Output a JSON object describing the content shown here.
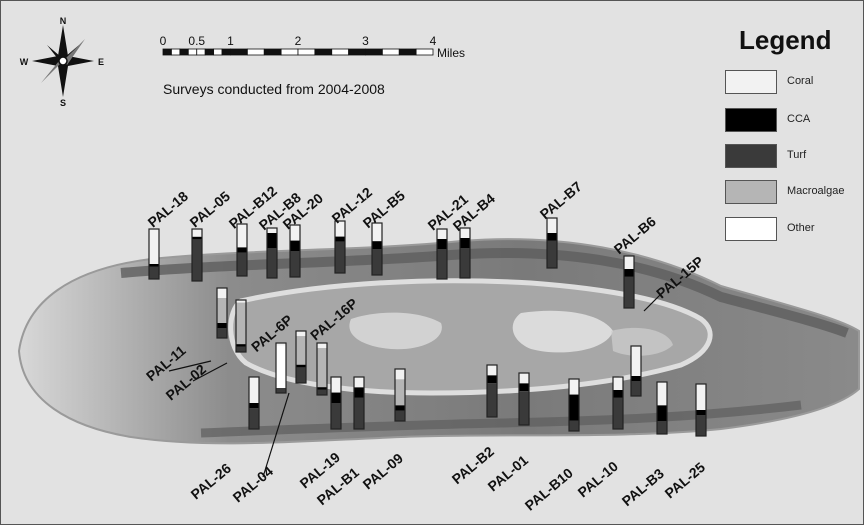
{
  "compass": {
    "north": "N",
    "south": "S",
    "east": "E",
    "west": "W"
  },
  "scale_bar": {
    "ticks": [
      {
        "label": "0",
        "value": 0
      },
      {
        "label": "0.5",
        "value": 0.5
      },
      {
        "label": "1",
        "value": 1
      },
      {
        "label": "2",
        "value": 2
      },
      {
        "label": "3",
        "value": 3
      },
      {
        "label": "4",
        "value": 4
      }
    ],
    "unit": "Miles"
  },
  "survey_note": "Surveys conducted from 2004-2008",
  "legend": {
    "title": "Legend",
    "items": [
      {
        "label": "Coral",
        "color": "#f2f2f2"
      },
      {
        "label": "CCA",
        "color": "#000000"
      },
      {
        "label": "Turf",
        "color": "#3a3a3a"
      },
      {
        "label": "Macroalgae",
        "color": "#b5b5b5"
      },
      {
        "label": "Other",
        "color": "#ffffff"
      }
    ]
  },
  "sites": [
    {
      "name": "PAL-18",
      "comp": {
        "coral": 0.7,
        "cca": 0.05,
        "turf": 0.25,
        "macro": 0,
        "other": 0
      }
    },
    {
      "name": "PAL-05",
      "comp": {
        "coral": 0.15,
        "cca": 0.05,
        "turf": 0.8,
        "macro": 0,
        "other": 0
      }
    },
    {
      "name": "PAL-B12",
      "comp": {
        "coral": 0.45,
        "cca": 0.1,
        "turf": 0.45,
        "macro": 0,
        "other": 0
      }
    },
    {
      "name": "PAL-B8",
      "comp": {
        "coral": 0.1,
        "cca": 0.3,
        "turf": 0.6,
        "macro": 0,
        "other": 0
      }
    },
    {
      "name": "PAL-20",
      "comp": {
        "coral": 0.3,
        "cca": 0.2,
        "turf": 0.5,
        "macro": 0,
        "other": 0
      }
    },
    {
      "name": "PAL-12",
      "comp": {
        "coral": 0.3,
        "cca": 0.1,
        "turf": 0.6,
        "macro": 0,
        "other": 0
      }
    },
    {
      "name": "PAL-B5",
      "comp": {
        "coral": 0.35,
        "cca": 0.15,
        "turf": 0.5,
        "macro": 0,
        "other": 0
      }
    },
    {
      "name": "PAL-21",
      "comp": {
        "coral": 0.2,
        "cca": 0.2,
        "turf": 0.6,
        "macro": 0,
        "other": 0
      }
    },
    {
      "name": "PAL-B4",
      "comp": {
        "coral": 0.2,
        "cca": 0.2,
        "turf": 0.6,
        "macro": 0,
        "other": 0
      }
    },
    {
      "name": "PAL-B7",
      "comp": {
        "coral": 0.3,
        "cca": 0.15,
        "turf": 0.55,
        "macro": 0,
        "other": 0
      }
    },
    {
      "name": "PAL-B6",
      "comp": {
        "coral": 0.25,
        "cca": 0.15,
        "turf": 0.6,
        "macro": 0,
        "other": 0
      }
    },
    {
      "name": "PAL-11",
      "comp": {
        "coral": 0.2,
        "cca": 0.1,
        "turf": 0.2,
        "macro": 0.5,
        "other": 0
      }
    },
    {
      "name": "PAL-02",
      "comp": {
        "coral": 0.05,
        "cca": 0.05,
        "turf": 0.1,
        "macro": 0.8,
        "other": 0
      }
    },
    {
      "name": "PAL-6P",
      "comp": {
        "coral": 0.05,
        "cca": 0,
        "turf": 0.1,
        "macro": 0,
        "other": 0.85
      }
    },
    {
      "name": "PAL-16P",
      "comp": {
        "coral": 0.1,
        "cca": 0.05,
        "turf": 0.3,
        "macro": 0.55,
        "other": 0
      }
    },
    {
      "name": "PAL-15P",
      "comp": {
        "coral": 0.6,
        "cca": 0.1,
        "turf": 0.3,
        "macro": 0,
        "other": 0
      }
    },
    {
      "name": "PAL-26",
      "comp": {
        "coral": 0.5,
        "cca": 0.1,
        "turf": 0.4,
        "macro": 0,
        "other": 0
      }
    },
    {
      "name": "PAL-04",
      "comp": {
        "coral": 0.1,
        "cca": 0.05,
        "turf": 0.1,
        "macro": 0.75,
        "other": 0
      }
    },
    {
      "name": "PAL-19",
      "comp": {
        "coral": 0.3,
        "cca": 0.2,
        "turf": 0.5,
        "macro": 0,
        "other": 0
      }
    },
    {
      "name": "PAL-B1",
      "comp": {
        "coral": 0.2,
        "cca": 0.2,
        "turf": 0.6,
        "macro": 0,
        "other": 0
      }
    },
    {
      "name": "PAL-09",
      "comp": {
        "coral": 0.2,
        "cca": 0.1,
        "turf": 0.2,
        "macro": 0.5,
        "other": 0
      }
    },
    {
      "name": "PAL-B2",
      "comp": {
        "coral": 0.2,
        "cca": 0.15,
        "turf": 0.65,
        "macro": 0,
        "other": 0
      }
    },
    {
      "name": "PAL-01",
      "comp": {
        "coral": 0.2,
        "cca": 0.15,
        "turf": 0.65,
        "macro": 0,
        "other": 0
      }
    },
    {
      "name": "PAL-B10",
      "comp": {
        "coral": 0.3,
        "cca": 0.5,
        "turf": 0.2,
        "macro": 0,
        "other": 0
      }
    },
    {
      "name": "PAL-10",
      "comp": {
        "coral": 0.25,
        "cca": 0.15,
        "turf": 0.6,
        "macro": 0,
        "other": 0
      }
    },
    {
      "name": "PAL-B3",
      "comp": {
        "coral": 0.45,
        "cca": 0.3,
        "turf": 0.25,
        "macro": 0,
        "other": 0
      }
    },
    {
      "name": "PAL-25",
      "comp": {
        "coral": 0.5,
        "cca": 0.1,
        "turf": 0.4,
        "macro": 0,
        "other": 0
      }
    }
  ]
}
